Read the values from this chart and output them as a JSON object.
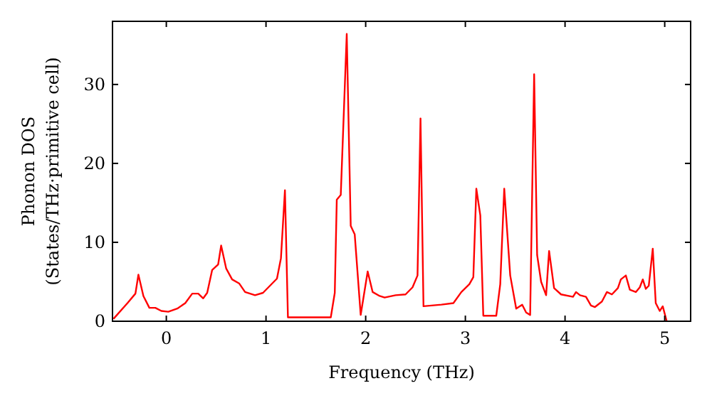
{
  "chart_data": {
    "type": "line",
    "xlabel": "Frequency (THz)",
    "ylabel": "Phonon DOS\n(States/THz·primitive cell)",
    "xlim": [
      -0.54,
      5.26
    ],
    "ylim": [
      0,
      38
    ],
    "xticks": [
      0,
      1,
      2,
      3,
      4,
      5
    ],
    "yticks": [
      0,
      10,
      20,
      30
    ],
    "grid": false,
    "marker": "none",
    "line_style": "solid",
    "series": [
      {
        "color": "#ff0000",
        "x": [
          -0.53,
          -0.39,
          -0.31,
          -0.28,
          -0.23,
          -0.17,
          -0.11,
          -0.05,
          0.02,
          0.11,
          0.19,
          0.26,
          0.32,
          0.37,
          0.41,
          0.46,
          0.52,
          0.55,
          0.6,
          0.66,
          0.73,
          0.79,
          0.89,
          0.97,
          1.04,
          1.11,
          1.15,
          1.19,
          1.22,
          1.65,
          1.69,
          1.71,
          1.75,
          1.81,
          1.85,
          1.89,
          1.95,
          2.02,
          2.07,
          2.14,
          2.19,
          2.3,
          2.4,
          2.47,
          2.52,
          2.55,
          2.58,
          2.76,
          2.88,
          2.96,
          3.04,
          3.08,
          3.11,
          3.15,
          3.18,
          3.31,
          3.35,
          3.39,
          3.45,
          3.51,
          3.57,
          3.61,
          3.65,
          3.69,
          3.72,
          3.76,
          3.81,
          3.84,
          3.89,
          3.96,
          4.08,
          4.11,
          4.15,
          4.21,
          4.26,
          4.3,
          4.37,
          4.42,
          4.47,
          4.53,
          4.56,
          4.61,
          4.65,
          4.71,
          4.75,
          4.78,
          4.81,
          4.84,
          4.88,
          4.91,
          4.95,
          4.98,
          5.02
        ],
        "values": [
          0.3,
          2.3,
          3.5,
          5.9,
          3.2,
          1.7,
          1.7,
          1.3,
          1.2,
          1.6,
          2.3,
          3.5,
          3.5,
          2.9,
          3.6,
          6.5,
          7.2,
          9.6,
          6.7,
          5.3,
          4.8,
          3.7,
          3.3,
          3.6,
          4.5,
          5.4,
          8.0,
          16.6,
          0.5,
          0.5,
          3.6,
          15.4,
          16.0,
          36.4,
          12.1,
          11.0,
          0.8,
          6.3,
          3.7,
          3.2,
          3.0,
          3.3,
          3.4,
          4.3,
          5.8,
          25.7,
          1.9,
          2.1,
          2.3,
          3.7,
          4.7,
          5.6,
          16.8,
          13.4,
          0.7,
          0.7,
          4.7,
          16.8,
          5.8,
          1.6,
          2.1,
          1.1,
          0.8,
          31.3,
          8.4,
          5.0,
          3.3,
          8.9,
          4.2,
          3.4,
          3.1,
          3.7,
          3.3,
          3.1,
          2.0,
          1.8,
          2.5,
          3.7,
          3.4,
          4.2,
          5.3,
          5.8,
          4.0,
          3.7,
          4.3,
          5.3,
          4.1,
          4.5,
          9.2,
          2.3,
          1.3,
          1.9,
          0
        ]
      }
    ]
  }
}
